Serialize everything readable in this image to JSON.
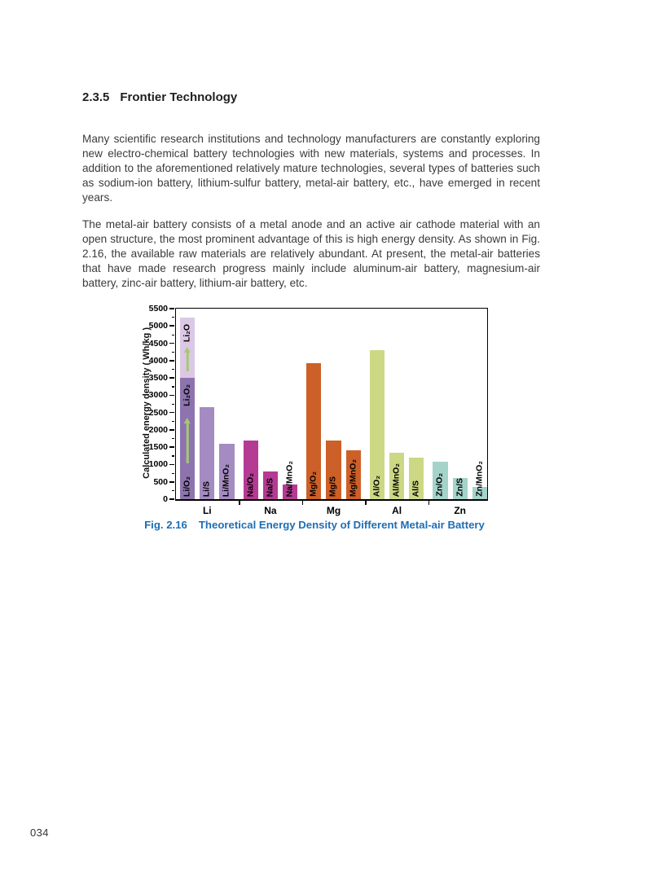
{
  "page": {
    "number": "034"
  },
  "section": {
    "number": "2.3.5",
    "title": "Frontier Technology"
  },
  "paragraphs": [
    "Many scientific research institutions and technology manufacturers are constantly exploring new electro-chemical battery technologies with new materials, systems and processes. In addition to the aforementioned relatively mature technologies, several types of batteries such as sodium-ion battery, lithium-sulfur battery, metal-air battery, etc., have emerged in recent years.",
    "The metal-air battery consists of a metal anode and an active air cathode material with an open structure, the most prominent advantage of this is high energy density. As shown in Fig. 2.16, the available raw materials are relatively abundant. At present, the metal-air batteries that have made research progress mainly include aluminum-air battery, magnesium-air battery, zinc-air battery, lithium-air battery, etc."
  ],
  "figure": {
    "caption_label": "Fig. 2.16",
    "caption_title": "Theoretical Energy Density of Different Metal-air Battery",
    "caption_color": "#1d6eb5"
  },
  "chart_data": {
    "type": "bar",
    "title": "Theoretical Energy Density of Different Metal-air Battery",
    "xlabel": "",
    "ylabel": "Calculated energy density ( Wh/kg )",
    "ylim": [
      0,
      5500
    ],
    "ytick_step": 500,
    "ytick_minor_step": 250,
    "grid": false,
    "legend": "none",
    "arrow_color": "#a6c873",
    "categories": [
      "Li",
      "Na",
      "Mg",
      "Al",
      "Zn"
    ],
    "groups": [
      {
        "label": "Li",
        "color": "#a48bc1",
        "bars": [
          {
            "label": "Li/O₂",
            "value": 3500,
            "color": "#8d74ae",
            "stack_to": 5250,
            "stack_color": "#dcc8e5",
            "inner_labels": [
              "Li₂O₂",
              "Li₂O"
            ]
          },
          {
            "label": "Li/S",
            "value": 2650
          },
          {
            "label": "Li/MnO₂",
            "value": 1600
          }
        ]
      },
      {
        "label": "Na",
        "color": "#b43a93",
        "bars": [
          {
            "label": "Na/O₂",
            "value": 1700
          },
          {
            "label": "Na/S",
            "value": 800
          },
          {
            "label": "Na/MnO₂",
            "value": 430
          }
        ]
      },
      {
        "label": "Mg",
        "color": "#cd5f28",
        "bars": [
          {
            "label": "Mg/O₂",
            "value": 3920
          },
          {
            "label": "Mg/S",
            "value": 1700
          },
          {
            "label": "Mg/MnO₂",
            "value": 1400
          }
        ]
      },
      {
        "label": "Al",
        "color": "#cdd884",
        "bars": [
          {
            "label": "Al/O₂",
            "value": 4300
          },
          {
            "label": "Al/MnO₂",
            "value": 1350
          },
          {
            "label": "Al/S",
            "value": 1200
          }
        ]
      },
      {
        "label": "Zn",
        "color": "#a4d3ca",
        "bars": [
          {
            "label": "Zn/O₂",
            "value": 1090
          },
          {
            "label": "Zn/S",
            "value": 600
          },
          {
            "label": "Zn/MnO₂",
            "value": 350
          }
        ]
      }
    ]
  }
}
